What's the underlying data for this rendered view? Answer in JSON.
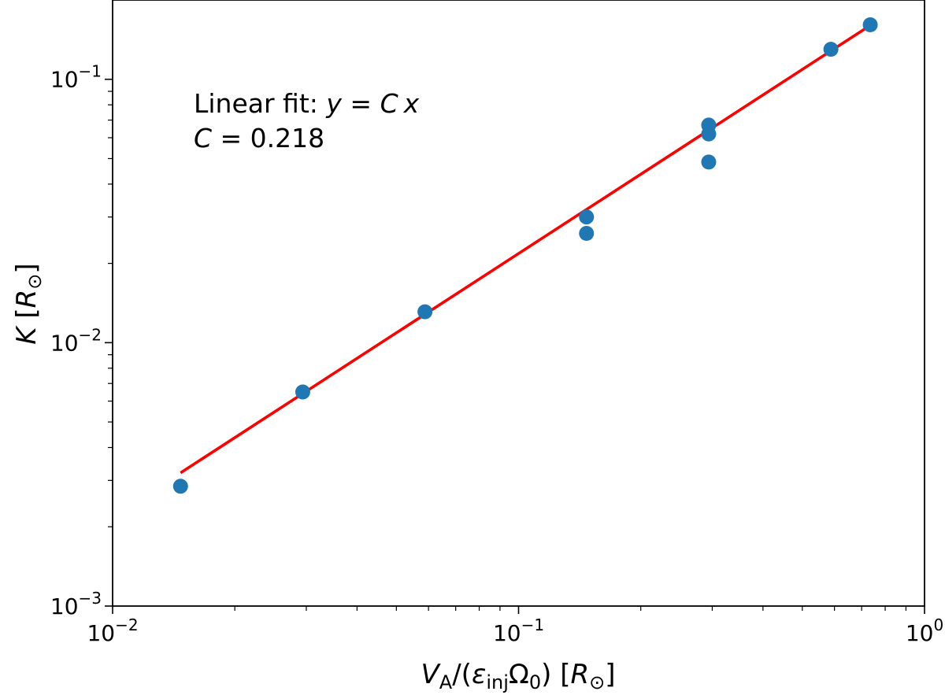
{
  "chart_data": {
    "type": "scatter",
    "xscale": "log",
    "yscale": "log",
    "xlim": [
      0.01,
      1
    ],
    "ylim": [
      0.001,
      0.2
    ],
    "grid": false,
    "x_ticks": [
      {
        "base": "10",
        "exp": "−2",
        "value": 0.01
      },
      {
        "base": "10",
        "exp": "−1",
        "value": 0.1
      },
      {
        "base": "10",
        "exp": "0",
        "value": 1
      }
    ],
    "y_ticks": [
      {
        "base": "10",
        "exp": "−3",
        "value": 0.001
      },
      {
        "base": "10",
        "exp": "−2",
        "value": 0.01
      },
      {
        "base": "10",
        "exp": "−1",
        "value": 0.1
      }
    ],
    "xlabel": {
      "v": "V",
      "a_sub": "A",
      "slash_open": "/(",
      "eps": "ε",
      "inj_sub": "inj",
      "omega": "Ω",
      "zero_sub": "0",
      "close": ")",
      "unit_open": " [",
      "r": "R",
      "sun": "⊙",
      "unit_close": "]"
    },
    "ylabel": {
      "k": "K",
      "unit_open": " [",
      "r": "R",
      "sun": "⊙",
      "unit_close": "]"
    },
    "series": [
      {
        "marker": "circle",
        "color": "#1f77b4",
        "points": [
          {
            "x": 0.0147,
            "y": 0.00285
          },
          {
            "x": 0.0294,
            "y": 0.0065
          },
          {
            "x": 0.0588,
            "y": 0.0131
          },
          {
            "x": 0.147,
            "y": 0.03
          },
          {
            "x": 0.147,
            "y": 0.026
          },
          {
            "x": 0.294,
            "y": 0.067
          },
          {
            "x": 0.294,
            "y": 0.062
          },
          {
            "x": 0.294,
            "y": 0.0485
          },
          {
            "x": 0.588,
            "y": 0.13
          },
          {
            "x": 0.735,
            "y": 0.161
          }
        ]
      },
      {
        "type": "line",
        "color": "#ff0000",
        "fit_coefficient": 0.218,
        "x_range": [
          0.0147,
          0.735
        ]
      }
    ],
    "annotation": {
      "line1_prefix": "Linear fit: ",
      "line1_y": "y",
      "line1_eq": " = ",
      "line1_c": "C",
      "line1_x": "x",
      "line2_c": "C",
      "line2_eq": " = 0.218"
    }
  }
}
